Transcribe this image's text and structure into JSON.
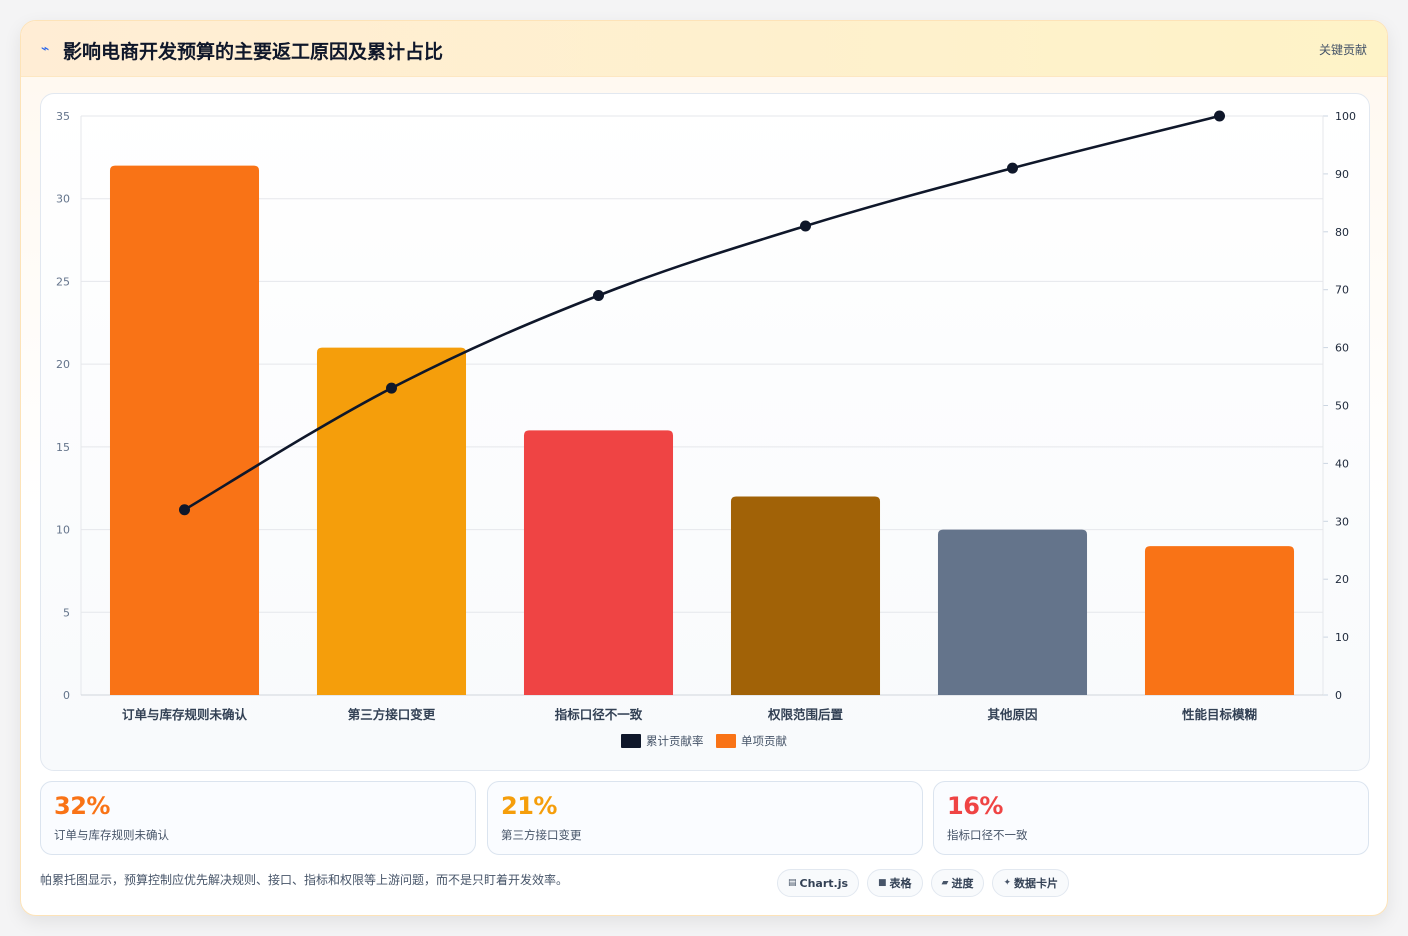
{
  "header": {
    "icon": "lightning-icon",
    "icon_glyph": "⌁",
    "title": "影响电商开发预算的主要返工原因及累计占比",
    "tag": "关键贡献"
  },
  "chart_data": {
    "type": "bar",
    "title": "",
    "xlabel": "",
    "ylabel": "",
    "categories": [
      "订单与库存规则未确认",
      "第三方接口变更",
      "指标口径不一致",
      "权限范围后置",
      "其他原因",
      "性能目标模糊"
    ],
    "series": [
      {
        "name": "单项贡献",
        "type": "bar",
        "axis": "left",
        "values": [
          32,
          21,
          16,
          12,
          10,
          9
        ],
        "colors": [
          "#f97316",
          "#f59e0b",
          "#ef4444",
          "#a16207",
          "#64748b",
          "#f97316"
        ]
      },
      {
        "name": "累计贡献率",
        "type": "line",
        "axis": "right",
        "values": [
          32,
          53,
          69,
          81,
          91,
          100
        ],
        "color": "#0f172a"
      }
    ],
    "ylim": [
      0,
      35
    ],
    "y_ticks": [
      0,
      5,
      10,
      15,
      20,
      25,
      30,
      35
    ],
    "y2lim": [
      0,
      100
    ],
    "y2_ticks": [
      0,
      10,
      20,
      30,
      40,
      50,
      60,
      70,
      80,
      90,
      100
    ],
    "grid": true,
    "legend_position": "bottom",
    "legend": [
      {
        "label": "累计贡献率",
        "color": "#0f172a"
      },
      {
        "label": "单项贡献",
        "color": "#f97316"
      }
    ]
  },
  "stats": [
    {
      "value": "32%",
      "label": "订单与库存规则未确认",
      "color": "#f97316"
    },
    {
      "value": "21%",
      "label": "第三方接口变更",
      "color": "#f59e0b"
    },
    {
      "value": "16%",
      "label": "指标口径不一致",
      "color": "#ef4444"
    }
  ],
  "footnote": "帕累托图显示，预算控制应优先解决规则、接口、指标和权限等上游问题，而不是只盯着开发效率。",
  "chips": [
    {
      "icon": "chart-icon",
      "glyph": "▤",
      "label": "Chart.js"
    },
    {
      "icon": "table-icon",
      "glyph": "■",
      "label": "表格"
    },
    {
      "icon": "progress-icon",
      "glyph": "▰",
      "label": "进度"
    },
    {
      "icon": "card-icon",
      "glyph": "✦",
      "label": "数据卡片"
    }
  ]
}
